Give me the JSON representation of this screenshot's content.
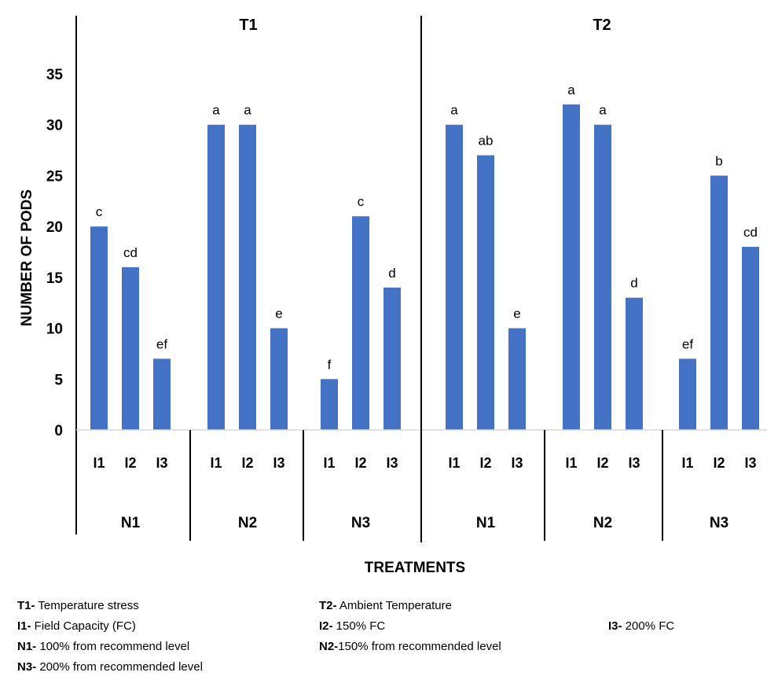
{
  "chart_data": {
    "type": "bar",
    "ylabel": "NUMBER OF PODS",
    "xlabel": "TREATMENTS",
    "ylim": [
      0,
      35
    ],
    "yticks": [
      0,
      5,
      10,
      15,
      20,
      25,
      30,
      35
    ],
    "grid": false,
    "color": "#4472C4",
    "groups": [
      {
        "label": "T1",
        "subgroups": [
          {
            "label": "N1",
            "bars": [
              {
                "category": "I1",
                "value": 20,
                "letter": "c"
              },
              {
                "category": "I2",
                "value": 16,
                "letter": "cd"
              },
              {
                "category": "I3",
                "value": 7,
                "letter": "ef"
              }
            ]
          },
          {
            "label": "N2",
            "bars": [
              {
                "category": "I1",
                "value": 30,
                "letter": "a"
              },
              {
                "category": "I2",
                "value": 30,
                "letter": "a"
              },
              {
                "category": "I3",
                "value": 10,
                "letter": "e"
              }
            ]
          },
          {
            "label": "N3",
            "bars": [
              {
                "category": "I1",
                "value": 5,
                "letter": "f"
              },
              {
                "category": "I2",
                "value": 21,
                "letter": "c"
              },
              {
                "category": "I3",
                "value": 14,
                "letter": "d"
              }
            ]
          }
        ]
      },
      {
        "label": "T2",
        "subgroups": [
          {
            "label": "N1",
            "bars": [
              {
                "category": "I1",
                "value": 30,
                "letter": "a"
              },
              {
                "category": "I2",
                "value": 27,
                "letter": "ab"
              },
              {
                "category": "I3",
                "value": 10,
                "letter": "e"
              }
            ]
          },
          {
            "label": "N2",
            "bars": [
              {
                "category": "I1",
                "value": 32,
                "letter": "a"
              },
              {
                "category": "I2",
                "value": 30,
                "letter": "a"
              },
              {
                "category": "I3",
                "value": 13,
                "letter": "d"
              }
            ]
          },
          {
            "label": "N3",
            "bars": [
              {
                "category": "I1",
                "value": 7,
                "letter": "ef"
              },
              {
                "category": "I2",
                "value": 25,
                "letter": "b"
              },
              {
                "category": "I3",
                "value": 18,
                "letter": "cd"
              }
            ]
          }
        ]
      }
    ]
  },
  "legend": [
    {
      "key": "T1-",
      "text": " Temperature stress"
    },
    {
      "key": "T2-",
      "text": " Ambient Temperature"
    },
    {
      "key": "I1-",
      "text": " Field Capacity (FC)"
    },
    {
      "key": "I2-",
      "text": " 150% FC"
    },
    {
      "key": "I3-",
      "text": " 200% FC"
    },
    {
      "key": "N1-",
      "text": " 100% from recommend level"
    },
    {
      "key": "N2-",
      "text": "150% from recommended level"
    },
    {
      "key": "N3-",
      "text": " 200% from recommended level"
    }
  ]
}
